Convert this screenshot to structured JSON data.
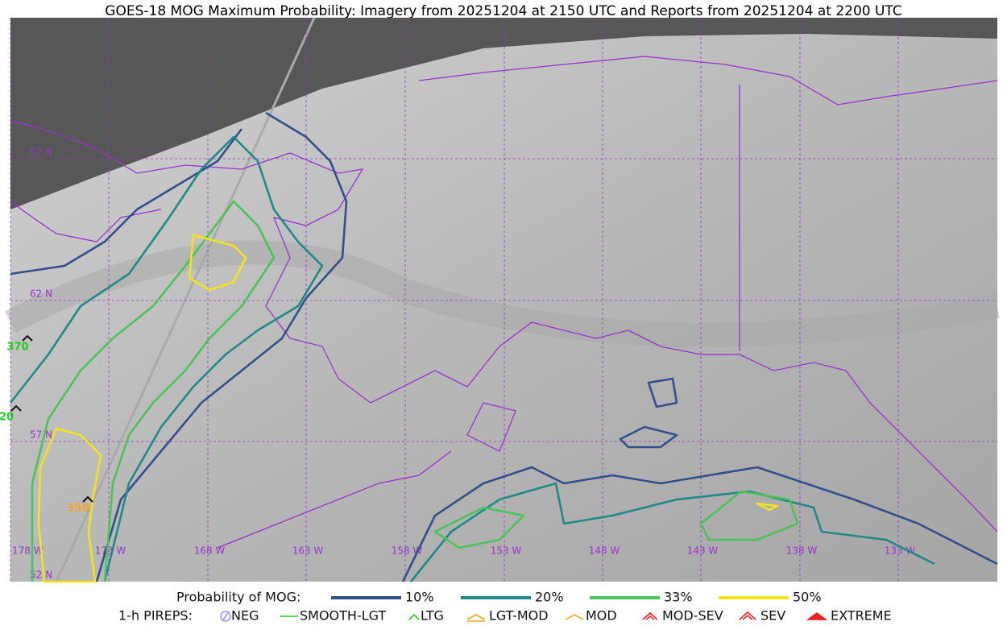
{
  "title": "GOES-18 MOG Maximum Probability: Imagery from 20251204 at 2150 UTC and Reports from 20251204 at 2200 UTC",
  "latitude_labels": [
    "67 N",
    "62 N",
    "57 N",
    "52 N"
  ],
  "longitude_labels": [
    "178 W",
    "173 W",
    "168 W",
    "163 W",
    "158 W",
    "153 W",
    "148 W",
    "143 W",
    "138 W",
    "133 W"
  ],
  "reports": [
    {
      "label": "370",
      "color": "#22cc22"
    },
    {
      "label": "20",
      "color": "#22cc22"
    },
    {
      "label": "350",
      "color": "#f5a623"
    }
  ],
  "legend": {
    "title": "Probability of MOG:",
    "levels": [
      {
        "label": "10%",
        "color": "#34508a"
      },
      {
        "label": "20%",
        "color": "#1f8a87"
      },
      {
        "label": "33%",
        "color": "#4cc35a"
      },
      {
        "label": "50%",
        "color": "#f5e21e"
      }
    ]
  },
  "pireps": {
    "title": "1-h PIREPS:",
    "items": [
      {
        "label": "NEG",
        "color": "#9999ff"
      },
      {
        "label": "SMOOTH-LGT",
        "color": "#22cc22"
      },
      {
        "label": "LTG",
        "color": "#22cc22"
      },
      {
        "label": "LGT-MOD",
        "color": "#f5a623"
      },
      {
        "label": "MOD",
        "color": "#f5a623"
      },
      {
        "label": "MOD-SEV",
        "color": "#ee2222"
      },
      {
        "label": "SEV",
        "color": "#ee2222"
      },
      {
        "label": "EXTREME",
        "color": "#ee2222"
      }
    ]
  }
}
